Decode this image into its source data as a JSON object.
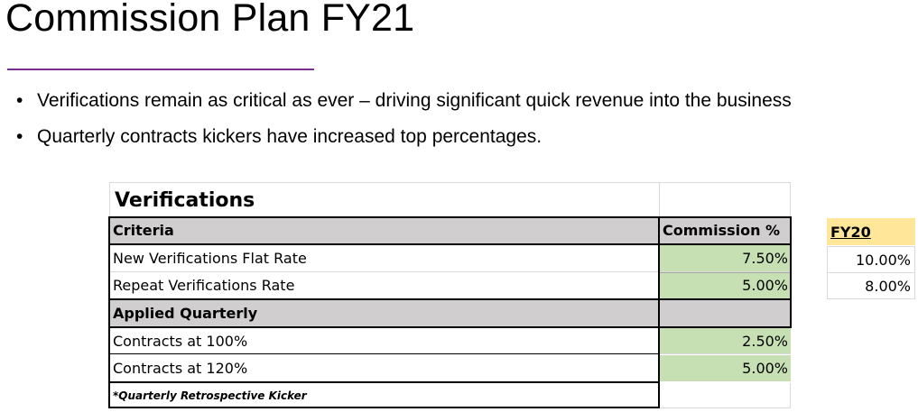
{
  "slide": {
    "title": "Commission Plan FY21",
    "bullets": [
      "Verifications remain as critical as ever – driving significant quick revenue into the business",
      "Quarterly contracts kickers have increased top percentages."
    ],
    "bullet_glyph": "•",
    "accent_color": "#7b2f8e"
  },
  "table": {
    "title": "Verifications",
    "header": {
      "criteria": "Criteria",
      "commission": "Commission %"
    },
    "rows_flat": [
      {
        "label": "New Verifications Flat Rate",
        "value": "7.50%"
      },
      {
        "label": "Repeat Verifications Rate",
        "value": "5.00%"
      }
    ],
    "section_label": "Applied Quarterly",
    "rows_quarterly": [
      {
        "label": "Contracts at 100%",
        "value": "2.50%"
      },
      {
        "label": "Contracts at 120%",
        "value": "5.00%"
      }
    ],
    "footnote": "*Quarterly Retrospective Kicker",
    "colors": {
      "header_fill": "#d0cece",
      "value_fill": "#c6e0b4"
    }
  },
  "fy20": {
    "header": "FY20",
    "values": [
      "10.00%",
      "8.00%"
    ],
    "header_fill": "#ffe699"
  }
}
